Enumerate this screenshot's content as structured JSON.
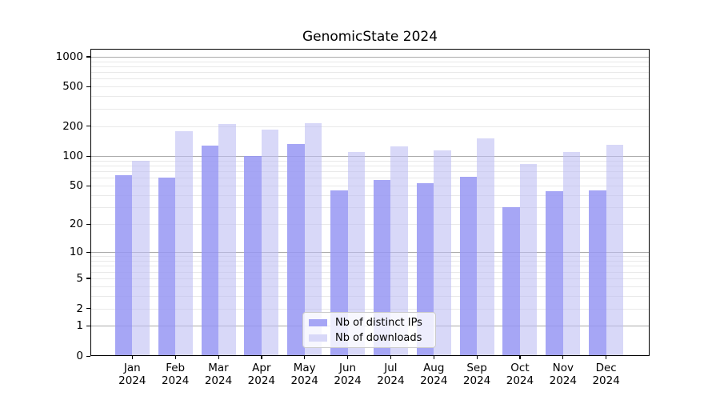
{
  "figure": {
    "title": "GenomicState 2024"
  },
  "chart_data": {
    "type": "bar",
    "title": "GenomicState 2024",
    "xlabel": "",
    "ylabel": "",
    "categories": [
      "Jan",
      "Feb",
      "Mar",
      "Apr",
      "May",
      "Jun",
      "Jul",
      "Aug",
      "Sep",
      "Oct",
      "Nov",
      "Dec"
    ],
    "category_sublabel": "2024",
    "series": [
      {
        "name": "Nb of distinct IPs",
        "values": [
          64,
          60,
          127,
          100,
          133,
          45,
          57,
          53,
          62,
          30,
          44,
          45
        ],
        "color": "#a6a6f5",
        "fill_rgba": "rgba(150,150,243,0.85)"
      },
      {
        "name": "Nb of downloads",
        "values": [
          90,
          178,
          210,
          185,
          213,
          110,
          125,
          114,
          150,
          83,
          110,
          131
        ],
        "color": "#d8d8f8",
        "fill_rgba": "rgba(190,190,243,0.6)"
      }
    ],
    "yscale": "symlog-log1p",
    "ylim": [
      0,
      1200
    ],
    "yticks": [
      0,
      1,
      2,
      5,
      10,
      20,
      50,
      100,
      200,
      500,
      1000
    ],
    "grid": {
      "major_at": [
        1,
        10,
        100,
        1000
      ],
      "minor_per_decade": [
        2,
        3,
        4,
        5,
        6,
        7,
        8,
        9
      ],
      "major_color": "#ababab",
      "minor_color": "#e9e9e9"
    },
    "legend": {
      "position": "lower-center",
      "labels": [
        "Nb of distinct IPs",
        "Nb of downloads"
      ]
    }
  }
}
